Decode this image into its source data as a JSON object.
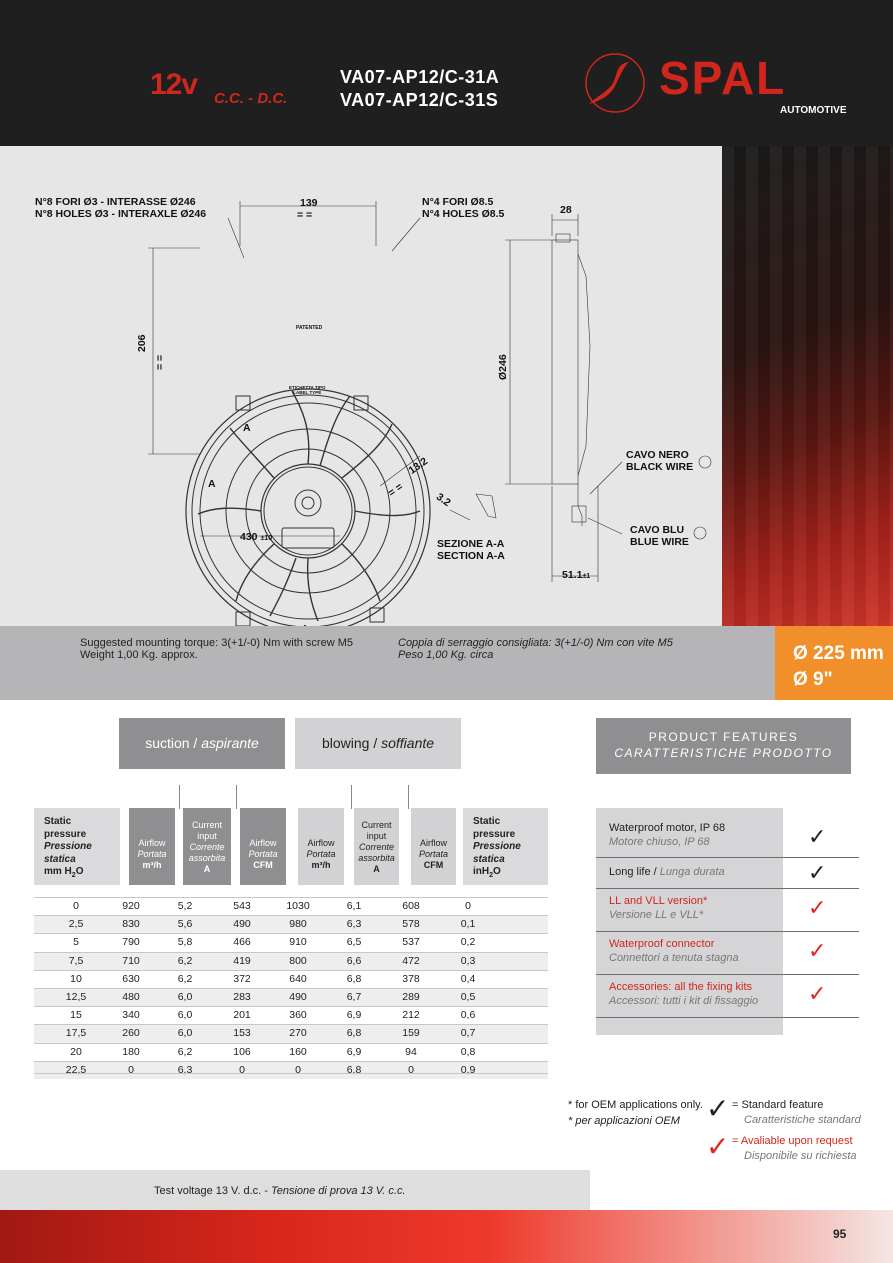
{
  "header": {
    "voltage": "12v",
    "current_type": "C.C. - D.C.",
    "models": [
      "VA07-AP12/C-31A",
      "VA07-AP12/C-31S"
    ],
    "brand": "SPAL",
    "brand_sub": "AUTOMOTIVE"
  },
  "drawing": {
    "holes_small_it": "N°8 FORI Ø3 - INTERASSE Ø246",
    "holes_small_en": "N°8 HOLES Ø3 - INTERAXLE Ø246",
    "dim_139": "139",
    "eq_top": "=   =",
    "holes_big_it": "N°4 FORI Ø8.5",
    "holes_big_en": "N°4 HOLES Ø8.5",
    "dim_28": "28",
    "dim_206": "206",
    "eq_side": "=   =",
    "dim_246": "Ø246",
    "patented": "PATENTED",
    "label_type": "ETICHETTA TIPO\nLABEL TYPE",
    "section_a_top": "A",
    "section_a_bottom": "A",
    "dim_13_2": "13.2",
    "eq_diag": "=  =",
    "dim_3_2": "3.2",
    "dim_430": "430",
    "dim_430_tol": "±10",
    "section_it": "SEZIONE A-A",
    "section_en": "SECTION A-A",
    "black_wire_it": "CAVO NERO",
    "black_wire_en": "BLACK WIRE",
    "blue_wire_it": "CAVO BLU",
    "blue_wire_en": "BLUE WIRE",
    "dim_51": "51.1",
    "dim_51_tol": "±1"
  },
  "info": {
    "torque_en": "Suggested mounting torque: 3(+1/-0) Nm with screw M5",
    "weight_en": "Weight 1,00 Kg. approx.",
    "torque_it": "Coppia di serraggio consigliata: 3(+1/-0) Nm con vite M5",
    "weight_it": "Peso 1,00 Kg. circa",
    "size_mm": "Ø 225 mm",
    "size_in": "Ø 9\""
  },
  "modes": {
    "suction_en": "suction / ",
    "suction_it": "aspirante",
    "blowing_en": "blowing / ",
    "blowing_it": "soffiante"
  },
  "table": {
    "col_static_mm": {
      "l1": "Static",
      "l2": "pressure",
      "l3": "Pressione",
      "l4": "statica",
      "unit": "mm H",
      "sub": "2",
      "unit2": "O"
    },
    "col_airflow_m3h": {
      "en": "Airflow",
      "it": "Portata",
      "unit": "m³/h"
    },
    "col_current": {
      "l1": "Current",
      "l2": "input",
      "l3": "Corrente",
      "l4": "assorbita",
      "unit": "A"
    },
    "col_airflow_cfm": {
      "en": "Airflow",
      "it": "Portata",
      "unit": "CFM"
    },
    "col_static_in": {
      "l1": "Static",
      "l2": "pressure",
      "l3": "Pressione",
      "l4": "statica",
      "unit": "inH",
      "sub": "2",
      "unit2": "O"
    },
    "rows": [
      [
        "0",
        "920",
        "5,2",
        "543",
        "1030",
        "6,1",
        "608",
        "0"
      ],
      [
        "2,5",
        "830",
        "5,6",
        "490",
        "980",
        "6,3",
        "578",
        "0,1"
      ],
      [
        "5",
        "790",
        "5,8",
        "466",
        "910",
        "6,5",
        "537",
        "0,2"
      ],
      [
        "7,5",
        "710",
        "6,2",
        "419",
        "800",
        "6,6",
        "472",
        "0,3"
      ],
      [
        "10",
        "630",
        "6,2",
        "372",
        "640",
        "6,8",
        "378",
        "0,4"
      ],
      [
        "12,5",
        "480",
        "6,0",
        "283",
        "490",
        "6,7",
        "289",
        "0,5"
      ],
      [
        "15",
        "340",
        "6,0",
        "201",
        "360",
        "6,9",
        "212",
        "0,6"
      ],
      [
        "17,5",
        "260",
        "6,0",
        "153",
        "270",
        "6,8",
        "159",
        "0,7"
      ],
      [
        "20",
        "180",
        "6,2",
        "106",
        "160",
        "6,9",
        "94",
        "0,8"
      ],
      [
        "22,5",
        "0",
        "6,3",
        "0",
        "0",
        "6,8",
        "0",
        "0,9"
      ]
    ]
  },
  "features": {
    "title_en": "PRODUCT FEATURES",
    "title_it": "CARATTERISTICHE PRODOTTO",
    "items": [
      {
        "en": "Waterproof motor, IP 68",
        "it": "Motore chiuso, IP 68",
        "check": "black"
      },
      {
        "en": "Long life / ",
        "en_it": "Lunga durata",
        "it": "",
        "check": "black"
      },
      {
        "en": "LL and VLL version*",
        "it": "Versione LL e VLL*",
        "check": "red"
      },
      {
        "en": "Waterproof connector",
        "it": "Connettori a tenuta stagna",
        "check": "red"
      },
      {
        "en": "Accessories: all the fixing kits",
        "it": "Accessori: tutti i kit di fissaggio",
        "check": "red"
      }
    ],
    "check_glyph": "✓"
  },
  "notes": {
    "oem_en": "* for OEM applications only.",
    "oem_it": "* per applicazioni OEM",
    "std_en": "= Standard feature",
    "std_it": "Caratteristiche standard",
    "req_en": "= Avaliable upon request",
    "req_it": "Disponibile su richiesta",
    "test_en": "Test voltage 13 V. d.c. - ",
    "test_it": "Tensione di prova 13 V. c.c.",
    "page": "95"
  },
  "colors": {
    "brand_red": "#d0261e",
    "orange": "#f1902a",
    "header_bg": "#1f1f1f"
  }
}
